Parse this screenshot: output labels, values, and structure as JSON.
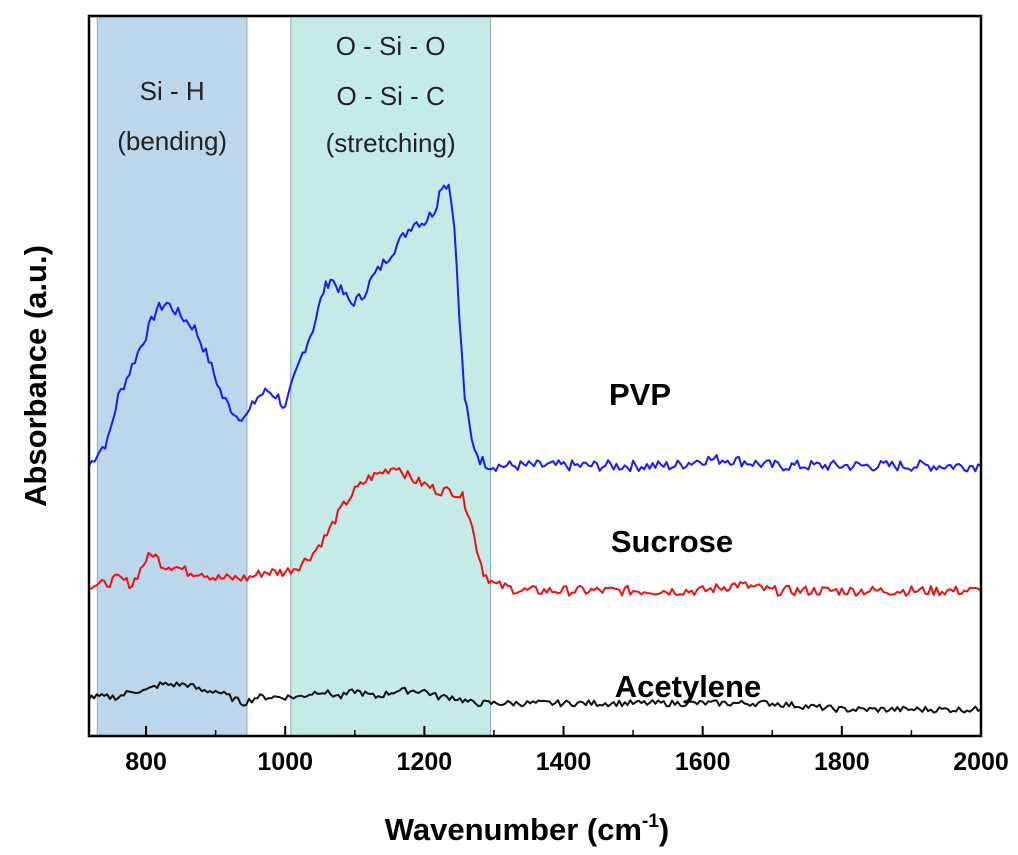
{
  "chart_data": {
    "type": "line",
    "xlabel": "Wavenumber (cm",
    "xlabel_sup": "-1",
    "xlabel_close": ")",
    "ylabel": "Absorbance (a.u.)",
    "xlim": [
      718,
      2000
    ],
    "x_ticks": [
      800,
      1000,
      1200,
      1400,
      1600,
      1800,
      2000
    ],
    "x_tick_labels": [
      "800",
      "1000",
      "1200",
      "1400",
      "1600",
      "1800",
      "2000"
    ],
    "y_ticks_shown": false,
    "grid": false,
    "bands": [
      {
        "x_start": 730,
        "x_end": 945,
        "color": "#bcd6ec",
        "label_lines": [
          "Si - H",
          "(bending)"
        ]
      },
      {
        "x_start": 1008,
        "x_end": 1295,
        "color": "#c5ebe8",
        "label_lines": [
          "O - Si - O",
          "O - Si - C",
          "(stretching)"
        ]
      }
    ],
    "series": [
      {
        "name": "PVP",
        "color": "#1a1aff",
        "points": [
          [
            718,
            0.41
          ],
          [
            730,
            0.43
          ],
          [
            745,
            0.45
          ],
          [
            760,
            0.52
          ],
          [
            780,
            0.57
          ],
          [
            800,
            0.62
          ],
          [
            815,
            0.66
          ],
          [
            830,
            0.67
          ],
          [
            850,
            0.65
          ],
          [
            870,
            0.63
          ],
          [
            890,
            0.58
          ],
          [
            910,
            0.52
          ],
          [
            930,
            0.49
          ],
          [
            945,
            0.49
          ],
          [
            960,
            0.52
          ],
          [
            975,
            0.53
          ],
          [
            990,
            0.52
          ],
          [
            1000,
            0.5
          ],
          [
            1010,
            0.54
          ],
          [
            1025,
            0.59
          ],
          [
            1040,
            0.63
          ],
          [
            1055,
            0.69
          ],
          [
            1065,
            0.71
          ],
          [
            1080,
            0.69
          ],
          [
            1095,
            0.67
          ],
          [
            1110,
            0.68
          ],
          [
            1125,
            0.71
          ],
          [
            1145,
            0.74
          ],
          [
            1165,
            0.77
          ],
          [
            1185,
            0.8
          ],
          [
            1200,
            0.8
          ],
          [
            1215,
            0.82
          ],
          [
            1225,
            0.86
          ],
          [
            1235,
            0.86
          ],
          [
            1243,
            0.8
          ],
          [
            1250,
            0.65
          ],
          [
            1258,
            0.52
          ],
          [
            1268,
            0.45
          ],
          [
            1280,
            0.42
          ],
          [
            1295,
            0.41
          ],
          [
            1350,
            0.41
          ],
          [
            1420,
            0.41
          ],
          [
            1500,
            0.41
          ],
          [
            1560,
            0.41
          ],
          [
            1600,
            0.42
          ],
          [
            1640,
            0.42
          ],
          [
            1700,
            0.41
          ],
          [
            1800,
            0.41
          ],
          [
            1900,
            0.41
          ],
          [
            2000,
            0.41
          ]
        ]
      },
      {
        "name": "Sucrose",
        "color": "#ee1111",
        "points": [
          [
            718,
            0.22
          ],
          [
            740,
            0.22
          ],
          [
            760,
            0.23
          ],
          [
            780,
            0.22
          ],
          [
            800,
            0.26
          ],
          [
            810,
            0.27
          ],
          [
            825,
            0.25
          ],
          [
            840,
            0.25
          ],
          [
            860,
            0.24
          ],
          [
            880,
            0.24
          ],
          [
            900,
            0.23
          ],
          [
            920,
            0.23
          ],
          [
            945,
            0.23
          ],
          [
            970,
            0.24
          ],
          [
            1000,
            0.24
          ],
          [
            1020,
            0.25
          ],
          [
            1040,
            0.27
          ],
          [
            1060,
            0.3
          ],
          [
            1080,
            0.34
          ],
          [
            1100,
            0.37
          ],
          [
            1120,
            0.39
          ],
          [
            1140,
            0.4
          ],
          [
            1160,
            0.41
          ],
          [
            1180,
            0.39
          ],
          [
            1200,
            0.38
          ],
          [
            1220,
            0.37
          ],
          [
            1240,
            0.37
          ],
          [
            1255,
            0.36
          ],
          [
            1265,
            0.33
          ],
          [
            1275,
            0.28
          ],
          [
            1285,
            0.24
          ],
          [
            1300,
            0.22
          ],
          [
            1340,
            0.21
          ],
          [
            1400,
            0.21
          ],
          [
            1500,
            0.21
          ],
          [
            1600,
            0.21
          ],
          [
            1650,
            0.22
          ],
          [
            1700,
            0.21
          ],
          [
            1800,
            0.21
          ],
          [
            1900,
            0.21
          ],
          [
            2000,
            0.21
          ]
        ]
      },
      {
        "name": "Acetylene",
        "color": "#111111",
        "points": [
          [
            718,
            0.04
          ],
          [
            740,
            0.04
          ],
          [
            760,
            0.04
          ],
          [
            780,
            0.05
          ],
          [
            800,
            0.05
          ],
          [
            820,
            0.06
          ],
          [
            840,
            0.06
          ],
          [
            860,
            0.06
          ],
          [
            880,
            0.05
          ],
          [
            900,
            0.05
          ],
          [
            920,
            0.04
          ],
          [
            940,
            0.03
          ],
          [
            960,
            0.04
          ],
          [
            980,
            0.04
          ],
          [
            1000,
            0.04
          ],
          [
            1020,
            0.04
          ],
          [
            1050,
            0.05
          ],
          [
            1080,
            0.04
          ],
          [
            1100,
            0.05
          ],
          [
            1130,
            0.04
          ],
          [
            1160,
            0.05
          ],
          [
            1180,
            0.05
          ],
          [
            1200,
            0.05
          ],
          [
            1220,
            0.04
          ],
          [
            1240,
            0.04
          ],
          [
            1270,
            0.03
          ],
          [
            1300,
            0.03
          ],
          [
            1400,
            0.03
          ],
          [
            1500,
            0.03
          ],
          [
            1600,
            0.03
          ],
          [
            1700,
            0.03
          ],
          [
            1800,
            0.02
          ],
          [
            1900,
            0.02
          ],
          [
            2000,
            0.02
          ]
        ]
      }
    ]
  }
}
